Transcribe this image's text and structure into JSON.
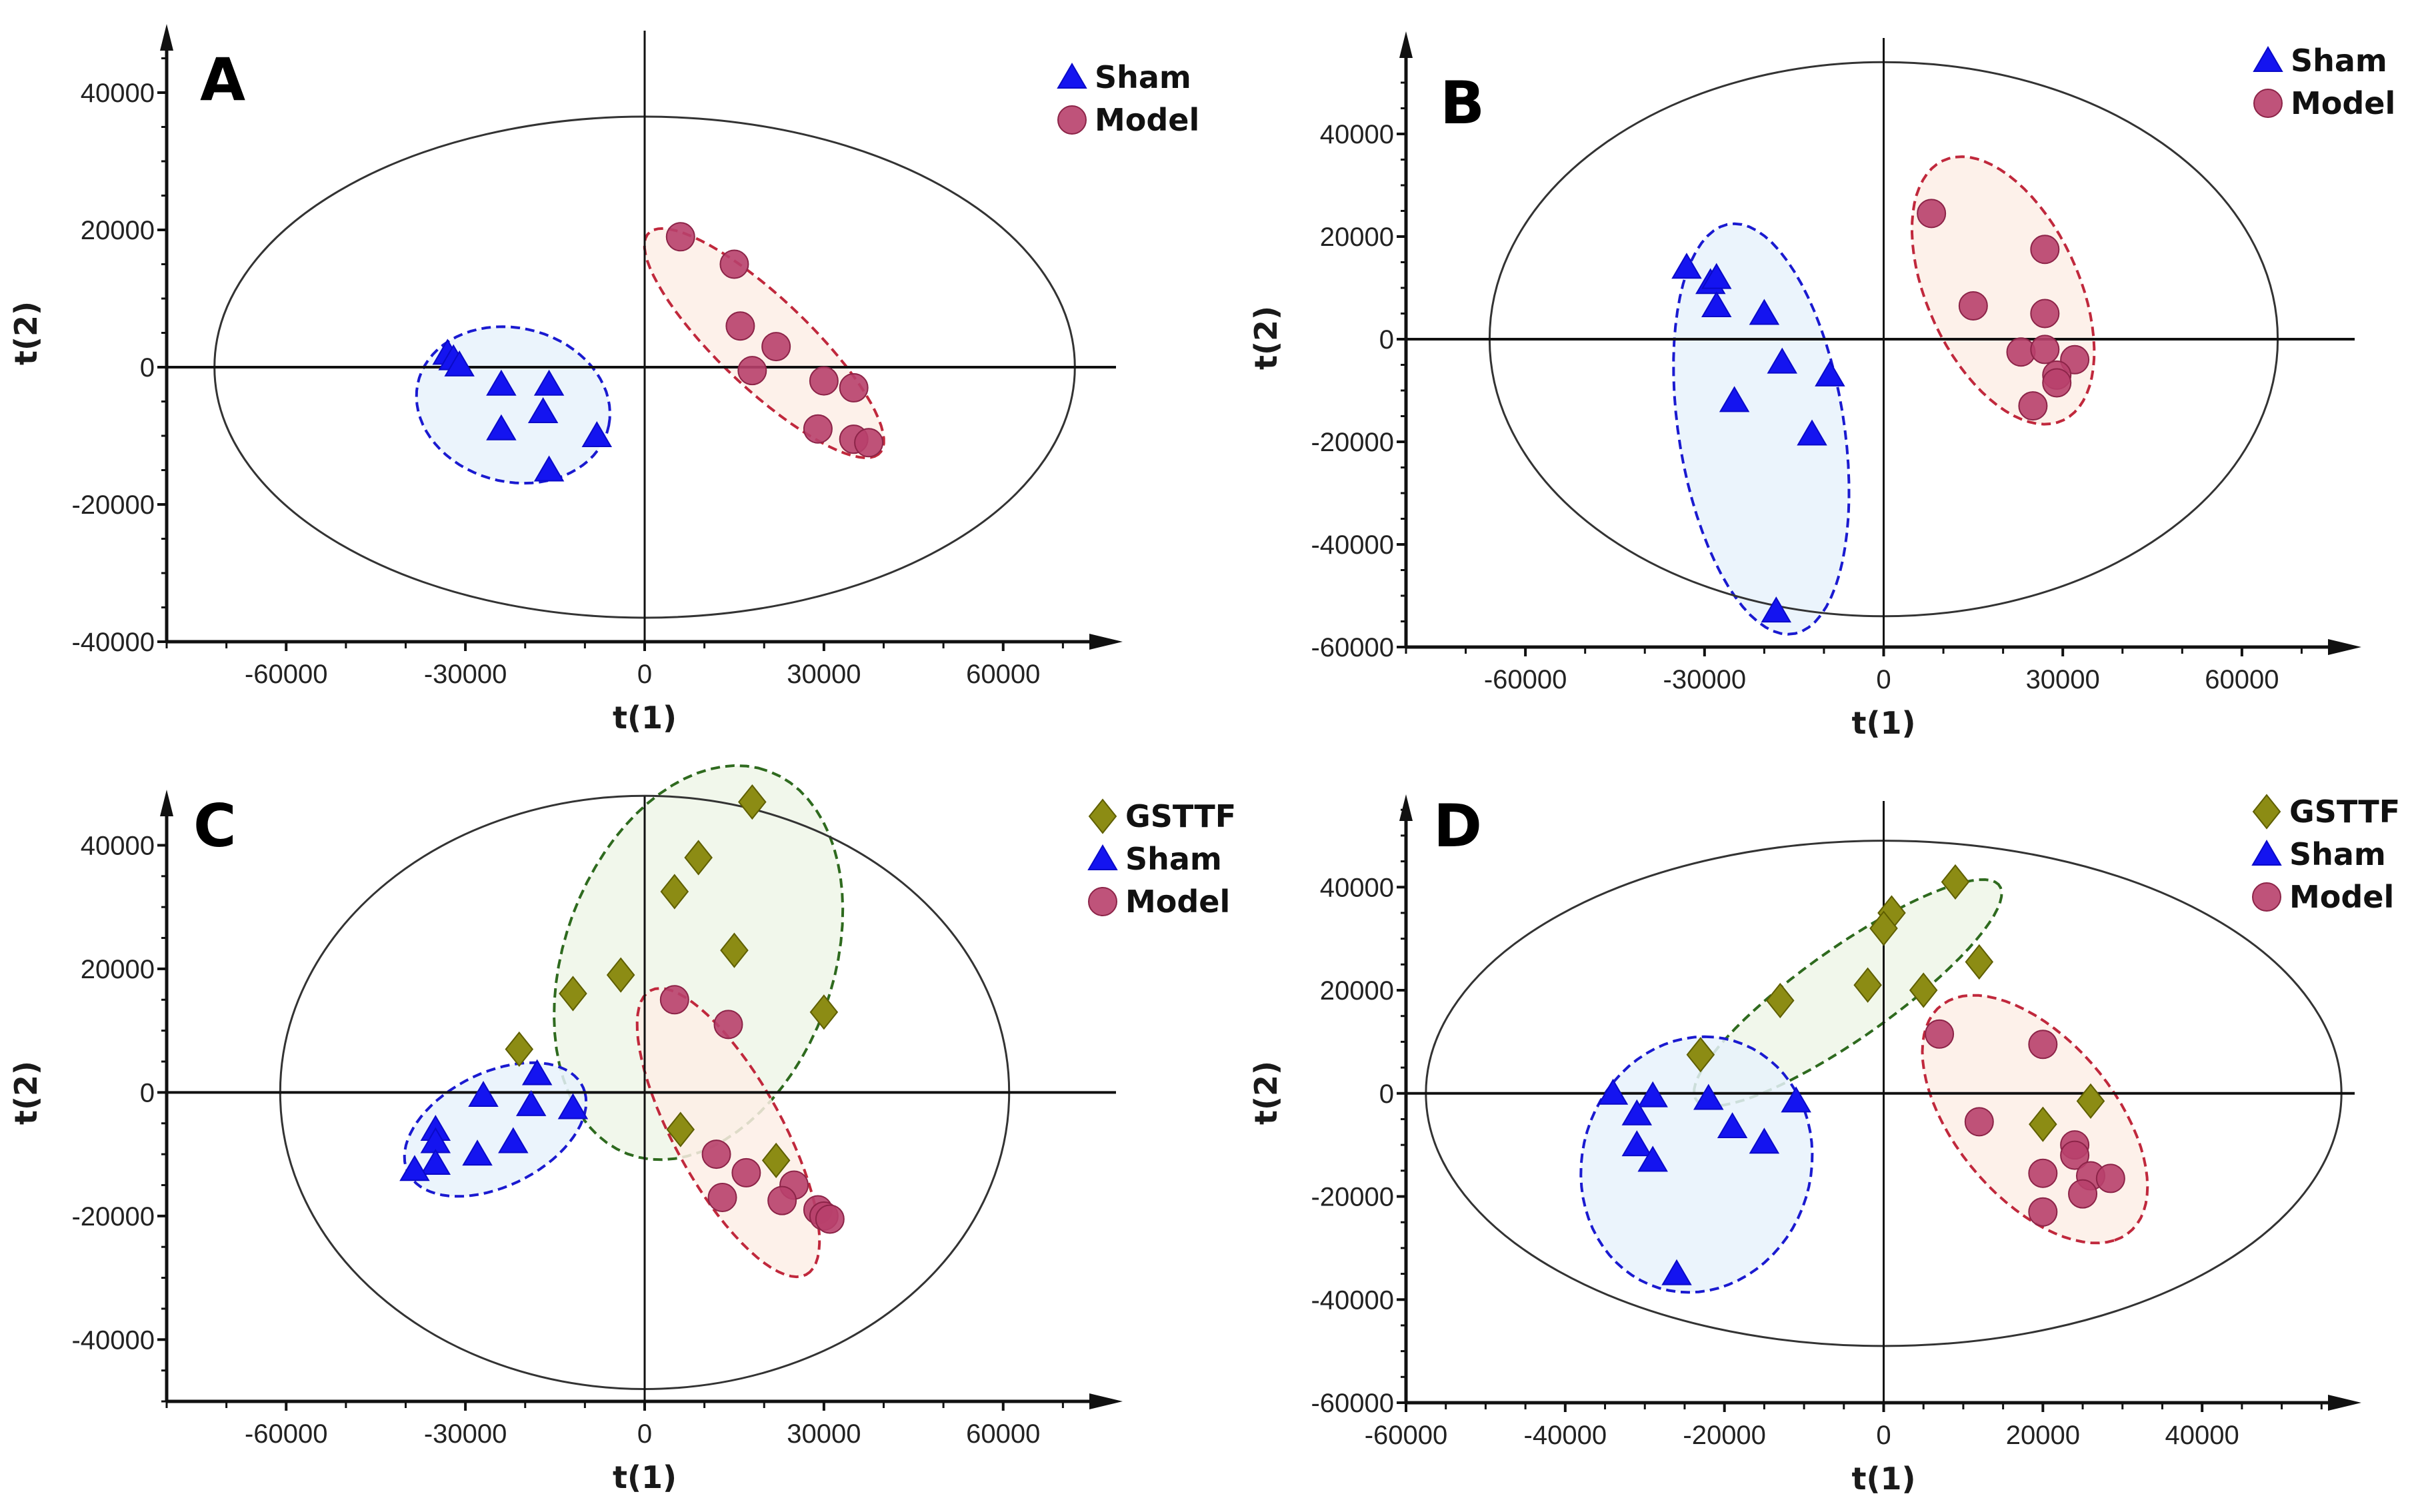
{
  "colors": {
    "Sham": {
      "fill": "#1414f0",
      "stroke": "#0a0ac8",
      "ellipse_fill": "#e8f2fb",
      "ellipse_stroke": "#1a1ad0"
    },
    "Model": {
      "fill": "#b8406b",
      "stroke": "#8c2448",
      "ellipse_fill": "#fdeee6",
      "ellipse_stroke": "#c0283c"
    },
    "GSTTF": {
      "fill": "#8c8c14",
      "stroke": "#5e5e00",
      "ellipse_fill": "#eef6e8",
      "ellipse_stroke": "#2e6a1e"
    },
    "hotelling": "#333333",
    "axis": "#111111"
  },
  "chart_data": [
    {
      "panel": "A",
      "type": "scatter",
      "xlabel": "t(1)",
      "ylabel": "t(2)",
      "xlim": [
        -80000,
        80000
      ],
      "ylim": [
        -40000,
        50000
      ],
      "xticks": [
        -60000,
        -30000,
        0,
        30000,
        60000
      ],
      "yticks": [
        -40000,
        -20000,
        0,
        20000,
        40000
      ],
      "xminor": 10000,
      "yminor": 5000,
      "legend": [
        "Sham",
        "Model"
      ],
      "hotelling": {
        "rx": 72000,
        "ry": 36500
      },
      "series": [
        {
          "name": "Sham",
          "marker": "triangle",
          "points": [
            [
              -33000,
              2000
            ],
            [
              -32000,
              1200
            ],
            [
              -31000,
              300
            ],
            [
              -24000,
              -2500
            ],
            [
              -16000,
              -2500
            ],
            [
              -17000,
              -6500
            ],
            [
              -24000,
              -9000
            ],
            [
              -8000,
              -10000
            ],
            [
              -16000,
              -15000
            ]
          ]
        },
        {
          "name": "Model",
          "marker": "circle",
          "points": [
            [
              6000,
              19000
            ],
            [
              15000,
              15000
            ],
            [
              16000,
              6000
            ],
            [
              22000,
              3000
            ],
            [
              18000,
              -500
            ],
            [
              30000,
              -2000
            ],
            [
              35000,
              -3000
            ],
            [
              29000,
              -9000
            ],
            [
              35000,
              -10500
            ],
            [
              37500,
              -11000
            ]
          ]
        }
      ],
      "ellipses": [
        {
          "group": "Sham",
          "center": [
            -22000,
            -5500
          ],
          "a": [
            16000,
            -3000
          ],
          "b": [
            2500,
            11000
          ]
        },
        {
          "group": "Model",
          "center": [
            20000,
            3500
          ],
          "a": [
            18500,
            -16500
          ],
          "b": [
            7700,
            2600
          ]
        }
      ]
    },
    {
      "panel": "B",
      "type": "scatter",
      "xlabel": "t(1)",
      "ylabel": "t(2)",
      "xlim": [
        -80000,
        80000
      ],
      "ylim": [
        -60000,
        60000
      ],
      "xticks": [
        -60000,
        -30000,
        0,
        30000,
        60000
      ],
      "yticks": [
        -60000,
        -40000,
        -20000,
        0,
        20000,
        40000
      ],
      "xminor": 10000,
      "yminor": 5000,
      "legend": [
        "Sham",
        "Model"
      ],
      "hotelling": {
        "rx": 66000,
        "ry": 54000
      },
      "series": [
        {
          "name": "Sham",
          "marker": "triangle",
          "points": [
            [
              -33000,
              14000
            ],
            [
              -29000,
              11000
            ],
            [
              -28000,
              12000
            ],
            [
              -28000,
              6500
            ],
            [
              -20000,
              5000
            ],
            [
              -17000,
              -4500
            ],
            [
              -9000,
              -7000
            ],
            [
              -25000,
              -12000
            ],
            [
              -12000,
              -18500
            ],
            [
              -18000,
              -53000
            ]
          ]
        },
        {
          "name": "Model",
          "marker": "circle",
          "points": [
            [
              8000,
              24500
            ],
            [
              27000,
              17500
            ],
            [
              15000,
              6500
            ],
            [
              27000,
              5000
            ],
            [
              23000,
              -2500
            ],
            [
              27000,
              -2000
            ],
            [
              32000,
              -4000
            ],
            [
              29000,
              -7000
            ],
            [
              29000,
              -8500
            ],
            [
              25000,
              -13000
            ]
          ]
        }
      ],
      "ellipses": [
        {
          "group": "Sham",
          "center": [
            -20500,
            -17500
          ],
          "a": [
            4500,
            -40000
          ],
          "b": [
            14000,
            0
          ]
        },
        {
          "group": "Model",
          "center": [
            20000,
            9500
          ],
          "a": [
            -8000,
            26000
          ],
          "b": [
            13000,
            2000
          ]
        }
      ]
    },
    {
      "panel": "C",
      "type": "scatter",
      "xlabel": "t(1)",
      "ylabel": "t(2)",
      "xlim": [
        -80000,
        80000
      ],
      "ylim": [
        -50000,
        49000
      ],
      "xticks": [
        -60000,
        -30000,
        0,
        30000,
        60000
      ],
      "yticks": [
        -40000,
        -20000,
        0,
        20000,
        40000
      ],
      "xminor": 10000,
      "yminor": 5000,
      "legend": [
        "GSTTF",
        "Sham",
        "Model"
      ],
      "hotelling": {
        "rx": 61000,
        "ry": 48000
      },
      "series": [
        {
          "name": "GSTTF",
          "marker": "diamond",
          "points": [
            [
              18000,
              47000
            ],
            [
              9000,
              38000
            ],
            [
              5000,
              32500
            ],
            [
              15000,
              23000
            ],
            [
              -4000,
              19000
            ],
            [
              -12000,
              16000
            ],
            [
              30000,
              13000
            ],
            [
              -21000,
              7000
            ],
            [
              6000,
              -6000
            ],
            [
              22000,
              -11000
            ]
          ]
        },
        {
          "name": "Sham",
          "marker": "triangle",
          "points": [
            [
              -18000,
              3000
            ],
            [
              -12000,
              -2500
            ],
            [
              -27000,
              -500
            ],
            [
              -19000,
              -2000
            ],
            [
              -35000,
              -6000
            ],
            [
              -35000,
              -8000
            ],
            [
              -22000,
              -8000
            ],
            [
              -28000,
              -10000
            ],
            [
              -35000,
              -11500
            ],
            [
              -38500,
              -12500
            ]
          ]
        },
        {
          "name": "Model",
          "marker": "circle",
          "points": [
            [
              5000,
              15000
            ],
            [
              14000,
              11000
            ],
            [
              12000,
              -10000
            ],
            [
              17000,
              -13000
            ],
            [
              25000,
              -15000
            ],
            [
              13000,
              -17000
            ],
            [
              23000,
              -17500
            ],
            [
              29000,
              -19000
            ],
            [
              30000,
              -20000
            ],
            [
              31000,
              -20500
            ]
          ]
        }
      ],
      "ellipses": [
        {
          "group": "GSTTF",
          "center": [
            9000,
            21000
          ],
          "a": [
            10000,
            31500
          ],
          "b": [
            22000,
            -5000
          ]
        },
        {
          "group": "Sham",
          "center": [
            -25000,
            -6000
          ],
          "a": [
            15000,
            6000
          ],
          "b": [
            -2500,
            9000
          ]
        },
        {
          "group": "Model",
          "center": [
            14000,
            -6500
          ],
          "a": [
            13000,
            -23000
          ],
          "b": [
            8000,
            4000
          ]
        }
      ]
    },
    {
      "panel": "D",
      "type": "scatter",
      "xlabel": "t(1)",
      "ylabel": "t(2)",
      "xlim": [
        -60000,
        60000
      ],
      "ylim": [
        -60000,
        58000
      ],
      "xticks": [
        -60000,
        -40000,
        -20000,
        0,
        20000,
        40000
      ],
      "yticks": [
        -60000,
        -40000,
        -20000,
        0,
        20000,
        40000
      ],
      "xminor": 5000,
      "yminor": 5000,
      "legend": [
        "GSTTF",
        "Sham",
        "Model"
      ],
      "hotelling": {
        "rx": 57500,
        "ry": 49000
      },
      "series": [
        {
          "name": "GSTTF",
          "marker": "diamond",
          "points": [
            [
              9000,
              41000
            ],
            [
              1000,
              35000
            ],
            [
              0,
              32000
            ],
            [
              12000,
              25500
            ],
            [
              -2000,
              21000
            ],
            [
              5000,
              20000
            ],
            [
              -13000,
              18000
            ],
            [
              -23000,
              7500
            ],
            [
              26000,
              -1500
            ],
            [
              20000,
              -6000
            ]
          ]
        },
        {
          "name": "Sham",
          "marker": "triangle",
          "points": [
            [
              -34000,
              0
            ],
            [
              -29000,
              -500
            ],
            [
              -22000,
              -1000
            ],
            [
              -11000,
              -1500
            ],
            [
              -31000,
              -4000
            ],
            [
              -19000,
              -6500
            ],
            [
              -15000,
              -9500
            ],
            [
              -31000,
              -10000
            ],
            [
              -29000,
              -13000
            ],
            [
              -26000,
              -35000
            ]
          ]
        },
        {
          "name": "Model",
          "marker": "circle",
          "points": [
            [
              7000,
              11500
            ],
            [
              20000,
              9500
            ],
            [
              12000,
              -5500
            ],
            [
              24000,
              -10000
            ],
            [
              24000,
              -12000
            ],
            [
              20000,
              -15500
            ],
            [
              26000,
              -16000
            ],
            [
              28500,
              -16500
            ],
            [
              25000,
              -19500
            ],
            [
              20000,
              -23000
            ]
          ]
        }
      ],
      "ellipses": [
        {
          "group": "GSTTF",
          "center": [
            -4500,
            19500
          ],
          "a": [
            18500,
            21500
          ],
          "b": [
            5600,
            -4500
          ]
        },
        {
          "group": "Sham",
          "center": [
            -23500,
            -13800
          ],
          "a": [
            1000,
            24800
          ],
          "b": [
            14500,
            0
          ]
        },
        {
          "group": "Model",
          "center": [
            19000,
            -5000
          ],
          "a": [
            10000,
            -23500
          ],
          "b": [
            10000,
            5000
          ]
        }
      ]
    }
  ]
}
